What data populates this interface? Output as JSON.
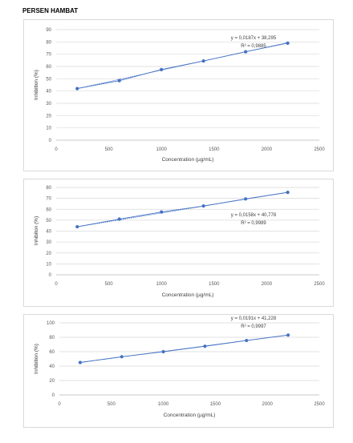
{
  "page": {
    "heading": "PERSEN HAMBAT"
  },
  "chart_data": [
    {
      "type": "scatter",
      "x": [
        200,
        600,
        1000,
        1400,
        1800,
        2200
      ],
      "y": [
        42,
        48.5,
        57.5,
        64.5,
        72,
        79
      ],
      "trendline": {
        "slope": 0.0187,
        "intercept": 38.295
      },
      "equation": "y = 0,0187x + 38,295",
      "r2": "R² = 0,9885",
      "xlabel": "Concentration (µg/mL)",
      "ylabel": "Inhibition (%)",
      "xlim": [
        0,
        2500
      ],
      "ylim": [
        0,
        90
      ],
      "xticks": [
        0,
        500,
        1000,
        1500,
        2000,
        2500
      ],
      "yticks": [
        0,
        10,
        20,
        30,
        40,
        50,
        60,
        70,
        80,
        90
      ],
      "grid": true,
      "color": "#4472c4"
    },
    {
      "type": "scatter",
      "x": [
        200,
        600,
        1000,
        1400,
        1800,
        2200
      ],
      "y": [
        44,
        51,
        57.5,
        63,
        69.5,
        75.5
      ],
      "trendline": {
        "slope": 0.0158,
        "intercept": 40.778
      },
      "equation": "y = 0,0158x + 40,778",
      "r2": "R² = 0,9989",
      "xlabel": "Concentration (µg/mL)",
      "ylabel": "Inhibiton (%)",
      "xlim": [
        0,
        2500
      ],
      "ylim": [
        0,
        80
      ],
      "xticks": [
        0,
        500,
        1000,
        1500,
        2000,
        2500
      ],
      "yticks": [
        0,
        10,
        20,
        30,
        40,
        50,
        60,
        70,
        80
      ],
      "grid": true,
      "color": "#4472c4"
    },
    {
      "type": "scatter",
      "x": [
        200,
        600,
        1000,
        1400,
        1800,
        2200
      ],
      "y": [
        45,
        53,
        60,
        67.5,
        75.5,
        83
      ],
      "trendline": {
        "slope": 0.0191,
        "intercept": 41.228
      },
      "equation": "y = 0,0191x + 41,228",
      "r2": "R² = 0,9997",
      "xlabel": "Concentration (µg/mL)",
      "ylabel": "Inhibition (%)",
      "xlim": [
        0,
        2500
      ],
      "ylim": [
        0,
        100
      ],
      "xticks": [
        0,
        500,
        1000,
        1500,
        2000,
        2500
      ],
      "yticks": [
        0,
        20,
        40,
        60,
        80,
        100
      ],
      "grid": true,
      "color": "#4472c4"
    }
  ]
}
